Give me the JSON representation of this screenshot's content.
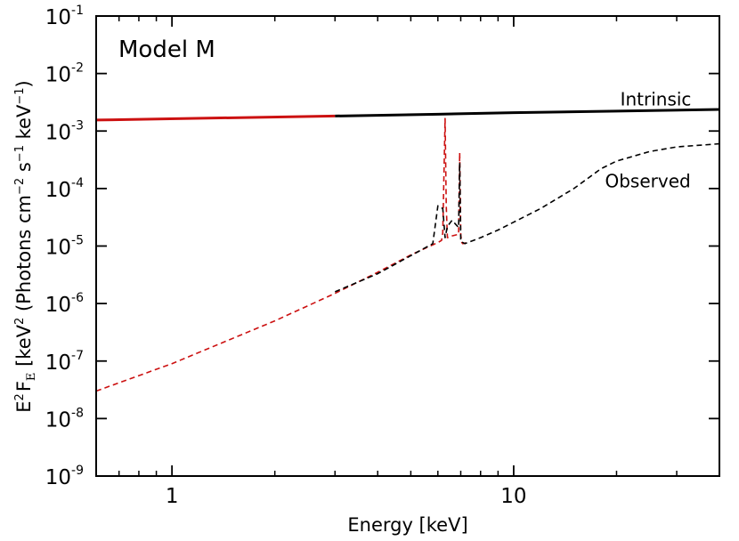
{
  "chart_data": {
    "type": "line",
    "title": "Model M",
    "xlabel": "Energy [keV]",
    "ylabel": {
      "prefix": "E",
      "prefix_sup": "2",
      "flux_symbol": "F",
      "flux_sub": "E",
      "units_open": " [keV",
      "units_open_sup": "2",
      "units_mid": "  (Photons cm",
      "units_mid_sup": "−2",
      "units_s": "  s",
      "units_s_sup": "−1",
      "units_kev": "  keV",
      "units_kev_sup": "−1",
      "units_close": ")"
    },
    "x_scale": "log",
    "y_scale": "log",
    "xlim": [
      0.6,
      40
    ],
    "ylim": [
      1e-09,
      0.1
    ],
    "x_ticks": [
      {
        "value": 1,
        "label": "1"
      },
      {
        "value": 10,
        "label": "10"
      }
    ],
    "y_ticks": [
      {
        "value": 1e-09,
        "base": "10",
        "exp": "-9"
      },
      {
        "value": 1e-08,
        "base": "10",
        "exp": "-8"
      },
      {
        "value": 1e-07,
        "base": "10",
        "exp": "-7"
      },
      {
        "value": 1e-06,
        "base": "10",
        "exp": "-6"
      },
      {
        "value": 1e-05,
        "base": "10",
        "exp": "-5"
      },
      {
        "value": 0.0001,
        "base": "10",
        "exp": "-4"
      },
      {
        "value": 0.001,
        "base": "10",
        "exp": "-3"
      },
      {
        "value": 0.01,
        "base": "10",
        "exp": "-2"
      },
      {
        "value": 0.1,
        "base": "10",
        "exp": "-1"
      }
    ],
    "annotations": [
      {
        "name": "intrinsic-label",
        "text": "Intrinsic",
        "x": 20.5,
        "y": 0.0028
      },
      {
        "name": "observed-label",
        "text": "Observed",
        "x": 18.5,
        "y": 0.000105
      }
    ],
    "series": [
      {
        "name": "Intrinsic (red segment)",
        "color": "#cc1111",
        "style": "solid",
        "x": [
          0.6,
          3.0
        ],
        "y": [
          0.00155,
          0.00182
        ]
      },
      {
        "name": "Intrinsic (black segment)",
        "color": "#000000",
        "style": "solid",
        "x": [
          3.0,
          6.0,
          10.0,
          20.0,
          40.0
        ],
        "y": [
          0.00182,
          0.00196,
          0.00209,
          0.00222,
          0.00237
        ]
      },
      {
        "name": "Observed (red)",
        "color": "#cc1111",
        "style": "dashed",
        "x": [
          0.6,
          1.0,
          2.0,
          3.0,
          4.0,
          5.0,
          5.8,
          6.0,
          6.15,
          6.2,
          6.3,
          6.35,
          6.4,
          6.6,
          6.9,
          6.95,
          7.0,
          7.05,
          7.1,
          7.3
        ],
        "y": [
          3e-08,
          9e-08,
          5e-07,
          1.5e-06,
          3.5e-06,
          7e-06,
          1.05e-05,
          1.15e-05,
          1.25e-05,
          1.7e-05,
          0.00165,
          5e-05,
          1.4e-05,
          1.5e-05,
          1.6e-05,
          0.00042,
          1.55e-05,
          1.15e-05,
          1.1e-05,
          1.15e-05
        ]
      },
      {
        "name": "Observed (black)",
        "color": "#000000",
        "style": "dashed",
        "x": [
          3.0,
          4.0,
          5.0,
          5.8,
          6.0,
          6.2,
          6.3,
          6.4,
          6.6,
          6.9,
          6.95,
          7.0,
          7.2,
          8.0,
          9.0,
          10.0,
          12.0,
          15.0,
          18.0,
          20.0,
          25.0,
          30.0,
          40.0
        ],
        "y": [
          1.6e-06,
          3.3e-06,
          6.8e-06,
          1.1e-05,
          5e-05,
          4.5e-05,
          1.4e-05,
          2.2e-05,
          2.8e-05,
          2.1e-05,
          0.00028,
          1.2e-05,
          1.1e-05,
          1.4e-05,
          1.9e-05,
          2.6e-05,
          4.5e-05,
          0.0001,
          0.00022,
          0.0003,
          0.00044,
          0.00053,
          0.0006
        ]
      }
    ]
  }
}
